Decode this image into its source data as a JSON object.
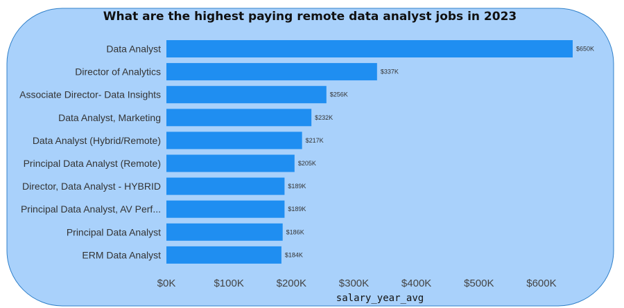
{
  "chart_data": {
    "type": "bar",
    "orientation": "horizontal",
    "title": "What are the highest paying remote data analyst jobs in 2023",
    "xlabel": "salary_year_avg",
    "ylabel": "",
    "xlim": [
      0,
      650000
    ],
    "grid": false,
    "legend": "none",
    "bar_color": "#1f8ef1",
    "background_color": "#a9d1fb",
    "categories": [
      "Data Analyst",
      "Director of Analytics",
      "Associate Director- Data Insights",
      "Data Analyst, Marketing",
      "Data Analyst (Hybrid/Remote)",
      "Principal Data Analyst (Remote)",
      "Director, Data Analyst - HYBRID",
      "Principal Data Analyst, AV Perf...",
      "Principal Data Analyst",
      "ERM Data Analyst"
    ],
    "values": [
      650000,
      337000,
      256000,
      232000,
      217000,
      205000,
      189000,
      189000,
      186000,
      184000
    ],
    "data_labels": [
      "$650K",
      "$337K",
      "$256K",
      "$232K",
      "$217K",
      "$205K",
      "$189K",
      "$189K",
      "$186K",
      "$184K"
    ],
    "x_ticks": [
      0,
      100000,
      200000,
      300000,
      400000,
      500000,
      600000
    ],
    "x_tick_labels": [
      "$0K",
      "$100K",
      "$200K",
      "$300K",
      "$400K",
      "$500K",
      "$600K"
    ]
  }
}
